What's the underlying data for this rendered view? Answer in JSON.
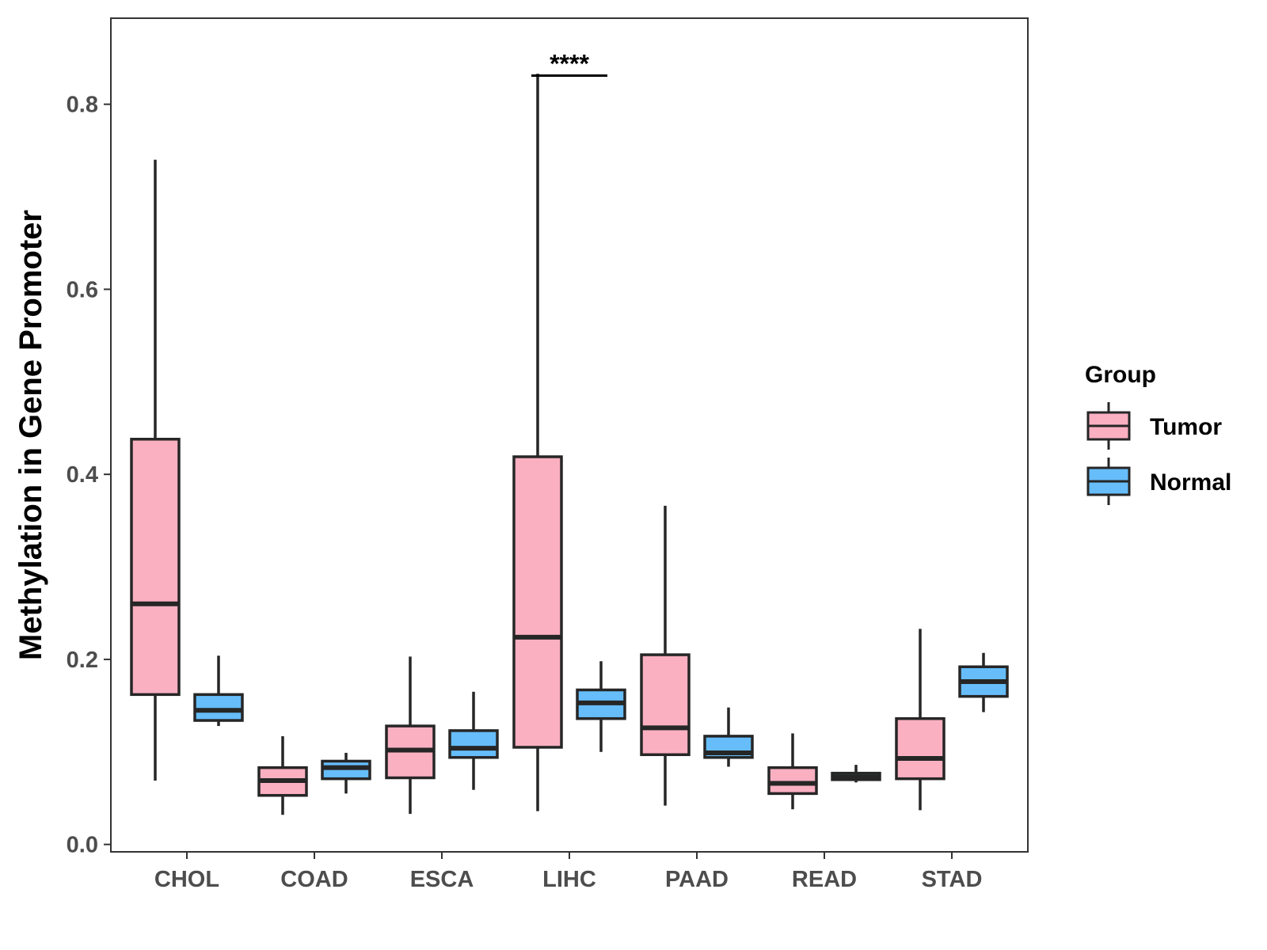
{
  "chart_data": {
    "type": "boxplot",
    "title": "",
    "xlabel": "",
    "ylabel": "Methylation in Gene Promoter",
    "ylim": [
      -0.008,
      0.893
    ],
    "yticks": [
      "0.0",
      "0.2",
      "0.4",
      "0.6",
      "0.8"
    ],
    "ytick_values": [
      0.0,
      0.2,
      0.4,
      0.6,
      0.8
    ],
    "grid": false,
    "legend": {
      "title": "Group",
      "position": "right"
    },
    "categories": [
      "CHOL",
      "COAD",
      "ESCA",
      "LIHC",
      "PAAD",
      "READ",
      "STAD"
    ],
    "series": [
      {
        "name": "Tumor",
        "color": "#fbb0c2",
        "boxes": [
          {
            "min": 0.069,
            "q1": 0.162,
            "median": 0.26,
            "q3": 0.438,
            "max": 0.74
          },
          {
            "min": 0.032,
            "q1": 0.053,
            "median": 0.069,
            "q3": 0.083,
            "max": 0.117
          },
          {
            "min": 0.033,
            "q1": 0.072,
            "median": 0.102,
            "q3": 0.128,
            "max": 0.203
          },
          {
            "min": 0.036,
            "q1": 0.105,
            "median": 0.224,
            "q3": 0.419,
            "max": 0.833
          },
          {
            "min": 0.042,
            "q1": 0.097,
            "median": 0.126,
            "q3": 0.205,
            "max": 0.366
          },
          {
            "min": 0.038,
            "q1": 0.055,
            "median": 0.066,
            "q3": 0.083,
            "max": 0.12
          },
          {
            "min": 0.037,
            "q1": 0.071,
            "median": 0.093,
            "q3": 0.136,
            "max": 0.233
          }
        ]
      },
      {
        "name": "Normal",
        "color": "#66bdfa",
        "boxes": [
          {
            "min": 0.128,
            "q1": 0.134,
            "median": 0.145,
            "q3": 0.162,
            "max": 0.204
          },
          {
            "min": 0.055,
            "q1": 0.071,
            "median": 0.083,
            "q3": 0.09,
            "max": 0.099
          },
          {
            "min": 0.059,
            "q1": 0.094,
            "median": 0.104,
            "q3": 0.123,
            "max": 0.165
          },
          {
            "min": 0.1,
            "q1": 0.136,
            "median": 0.153,
            "q3": 0.167,
            "max": 0.198
          },
          {
            "min": 0.084,
            "q1": 0.094,
            "median": 0.099,
            "q3": 0.117,
            "max": 0.148
          },
          {
            "min": 0.067,
            "q1": 0.07,
            "median": 0.073,
            "q3": 0.077,
            "max": 0.086
          },
          {
            "min": 0.143,
            "q1": 0.16,
            "median": 0.176,
            "q3": 0.192,
            "max": 0.207
          }
        ]
      }
    ],
    "annotations": [
      {
        "category": "LIHC",
        "text": "****",
        "y": 0.831
      }
    ]
  }
}
